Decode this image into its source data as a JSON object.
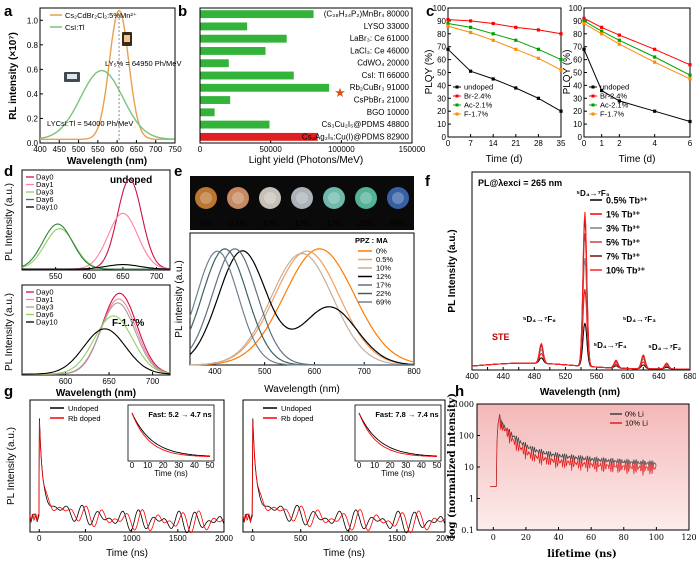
{
  "panel_labels": [
    "a",
    "b",
    "c",
    "d",
    "e",
    "f",
    "g",
    "h"
  ],
  "chart_data": [
    {
      "id": "a",
      "type": "line",
      "xlabel": "Wavelength (nm)",
      "ylabel": "RL intensity (×10⁷)",
      "xlim": [
        400,
        750
      ],
      "ylim": [
        0,
        1.1
      ],
      "xticks": [
        "400",
        "450",
        "500",
        "550",
        "600",
        "650",
        "700",
        "750"
      ],
      "yticks": [
        "0.0",
        "0.2",
        "0.4",
        "0.6",
        "0.8",
        "1.0"
      ],
      "series": [
        {
          "name": "Cs₂CdBr₂Cl₂:5%Mn²⁺",
          "color": "#e8a050",
          "peak": 605,
          "width": 25,
          "amp": 1.05
        },
        {
          "name": "CsI:Tl",
          "color": "#79c47b",
          "peak": 560,
          "width": 55,
          "amp": 0.56
        }
      ],
      "annotations": [
        "LY₅% = 64950 Ph/MeV",
        "LYCsI:Tl = 54000 Ph/MeV"
      ]
    },
    {
      "id": "b",
      "type": "bar",
      "orientation": "horizontal",
      "xlabel": "Light yield (Photons/MeV)",
      "xlim": [
        0,
        150000
      ],
      "xticks": [
        "0",
        "50000",
        "100000",
        "150000"
      ],
      "categories": [
        "(C₃₈H₃₄P₂)MnBr₄ 80000",
        "LYSO 33000",
        "LaBr₃: Ce 61000",
        "LaCl₃: Ce 46000",
        "CdWO₄ 20000",
        "CsI: Tl 66000",
        "Rb₂CuBr₃ 91000",
        "CsPbBr₃ 21000",
        "BGO 10000",
        "Cs₃Cu₂I₅@PDMS 48800",
        "Cs₃Ag₂I₅:Cu(I)@PDMS 82900"
      ],
      "values": [
        80000,
        33000,
        61000,
        46000,
        20000,
        66000,
        91000,
        21000,
        10000,
        48800,
        82900
      ],
      "colors": [
        "#33b33a",
        "#33b33a",
        "#33b33a",
        "#33b33a",
        "#33b33a",
        "#33b33a",
        "#33b33a",
        "#33b33a",
        "#33b33a",
        "#33b33a",
        "#e02020"
      ]
    },
    {
      "id": "c1",
      "type": "line",
      "xlabel": "Time (d)",
      "ylabel": "PLQY (%)",
      "x": [
        0,
        7,
        14,
        21,
        28,
        35
      ],
      "xlim": [
        0,
        35
      ],
      "ylim": [
        0,
        100
      ],
      "xticks": [
        "0",
        "7",
        "14",
        "21",
        "28",
        "35"
      ],
      "yticks": [
        "0",
        "10",
        "20",
        "30",
        "40",
        "50",
        "60",
        "70",
        "80",
        "90",
        "100"
      ],
      "series": [
        {
          "name": "undoped",
          "color": "#000000",
          "values": [
            68,
            51,
            45,
            38,
            30,
            20
          ]
        },
        {
          "name": "Br-2.4%",
          "color": "#ff0000",
          "values": [
            91,
            90,
            88,
            85,
            83,
            80
          ]
        },
        {
          "name": "Ac-2.1%",
          "color": "#00a000",
          "values": [
            88,
            85,
            80,
            75,
            68,
            60
          ]
        },
        {
          "name": "F-1.7%",
          "color": "#ff8c00",
          "values": [
            86,
            81,
            75,
            68,
            61,
            52
          ]
        }
      ]
    },
    {
      "id": "c2",
      "type": "line",
      "xlabel": "Time (d)",
      "ylabel": "PLQY (%)",
      "x": [
        0,
        1,
        2,
        4,
        6
      ],
      "xlim": [
        0,
        6
      ],
      "ylim": [
        0,
        100
      ],
      "xticks": [
        "0",
        "1",
        "2",
        "4",
        "6"
      ],
      "yticks": [
        "0",
        "10",
        "20",
        "30",
        "40",
        "50",
        "60",
        "70",
        "80",
        "90",
        "100"
      ],
      "series": [
        {
          "name": "undoped",
          "color": "#000000",
          "values": [
            68,
            36,
            28,
            20,
            12
          ]
        },
        {
          "name": "Br-2.4%",
          "color": "#ff0000",
          "values": [
            92,
            85,
            79,
            68,
            56
          ]
        },
        {
          "name": "Ac-2.1%",
          "color": "#00a000",
          "values": [
            90,
            82,
            75,
            62,
            48
          ]
        },
        {
          "name": "F-1.7%",
          "color": "#ff8c00",
          "values": [
            88,
            80,
            72,
            58,
            45
          ]
        }
      ]
    },
    {
      "id": "d1",
      "type": "line",
      "title": "undoped",
      "xlabel": "",
      "ylabel": "PL Intensity (a.u.)",
      "xlim": [
        500,
        720
      ],
      "xticks": [
        "550",
        "600",
        "650",
        "700"
      ],
      "series": [
        {
          "name": "Day0",
          "color": "#d01040",
          "peak": 660,
          "width": 18,
          "amp": 1.0
        },
        {
          "name": "Day1",
          "color": "#ff80a0",
          "peak": 650,
          "width": 22,
          "amp": 0.62
        },
        {
          "name": "Day3",
          "color": "#90d060",
          "peak": 556,
          "width": 22,
          "amp": 0.45
        },
        {
          "name": "Day6",
          "color": "#308040",
          "peak": 553,
          "width": 22,
          "amp": 0.5
        },
        {
          "name": "Day10",
          "color": "#000000",
          "peak": 650,
          "width": 25,
          "amp": 0.05
        }
      ]
    },
    {
      "id": "d2",
      "type": "line",
      "title": "F-1.7%",
      "xlabel": "Wavelength (nm)",
      "ylabel": "PL Intensity (a.u.)",
      "xlim": [
        550,
        720
      ],
      "xticks": [
        "600",
        "650",
        "700"
      ],
      "series": [
        {
          "name": "Day0",
          "color": "#d01040",
          "peak": 662,
          "width": 20,
          "amp": 1.0
        },
        {
          "name": "Day1",
          "color": "#ff80a0",
          "peak": 661,
          "width": 20,
          "amp": 0.93
        },
        {
          "name": "Day3",
          "color": "#a0a0a0",
          "peak": 660,
          "width": 20,
          "amp": 0.88
        },
        {
          "name": "Day6",
          "color": "#90d060",
          "peak": 655,
          "width": 22,
          "amp": 0.72
        },
        {
          "name": "Day10",
          "color": "#000000",
          "peak": 645,
          "width": 24,
          "amp": 0.56
        }
      ]
    },
    {
      "id": "e",
      "type": "line",
      "xlabel": "Wavelength (nm)",
      "ylabel": "PL intensity (a.u.)",
      "xlim": [
        350,
        800
      ],
      "xticks": [
        "400",
        "500",
        "600",
        "700",
        "800"
      ],
      "photo_labels": [
        "0%",
        "0.5%",
        "10%",
        "12%",
        "17%",
        "22%",
        "69%"
      ],
      "legend_title": "PPZ : MA",
      "series": [
        {
          "name": "0%",
          "color": "#ff7a00",
          "peak": 610,
          "width": 70,
          "amp": 1.0
        },
        {
          "name": "0.5%",
          "color": "#f0a060",
          "peak": 585,
          "width": 65,
          "amp": 0.98
        },
        {
          "name": "10%",
          "color": "#c0b0a0",
          "peak": 575,
          "width": 62,
          "amp": 0.96
        },
        {
          "name": "12%",
          "color": "#000000",
          "peak": 455,
          "width": 48,
          "amp": 0.98
        },
        {
          "name": "17%",
          "color": "#607080",
          "peak": 440,
          "width": 45,
          "amp": 1.0
        },
        {
          "name": "22%",
          "color": "#406060",
          "peak": 420,
          "width": 45,
          "amp": 1.0
        },
        {
          "name": "69%",
          "color": "#708090",
          "peak": 405,
          "width": 42,
          "amp": 0.98
        }
      ]
    },
    {
      "id": "f",
      "type": "line",
      "title": "PL@λexci = 265 nm",
      "xlabel": "Wavelength (nm)",
      "ylabel": "PL Intensity (a.u.)",
      "xlim": [
        400,
        680
      ],
      "xticks": [
        "400",
        "420",
        "440",
        "460",
        "480",
        "500",
        "520",
        "540",
        "560",
        "580",
        "600",
        "620",
        "640",
        "660",
        "680"
      ],
      "peaks_nm": [
        489,
        545,
        585,
        620,
        650
      ],
      "peak_labels": [
        "⁵D₄→⁷F₆",
        "⁵D₄→⁷F₅",
        "⁵D₄→⁷F₄",
        "⁵D₄→⁷F₃",
        "⁵D₄→⁷F₂"
      ],
      "annotations": [
        "STE"
      ],
      "series": [
        {
          "name": "0.5% Tb³⁺",
          "color": "#000000",
          "amp": 0.28
        },
        {
          "name": "1% Tb³⁺",
          "color": "#ff0000",
          "amp": 0.5
        },
        {
          "name": "3% Tb³⁺",
          "color": "#808080",
          "amp": 0.7
        },
        {
          "name": "5% Tb³⁺",
          "color": "#d04040",
          "amp": 0.86
        },
        {
          "name": "7% Tb³⁺",
          "color": "#7a1010",
          "amp": 0.95
        },
        {
          "name": "10% Tb³⁺",
          "color": "#ff2020",
          "amp": 1.0
        }
      ]
    },
    {
      "id": "g1",
      "type": "line",
      "xlabel": "Time (ns)",
      "ylabel": "PL Intensity (a.u.)",
      "xlim": [
        -100,
        2000
      ],
      "xticks": [
        "0",
        "500",
        "1000",
        "1500",
        "2000"
      ],
      "series": [
        {
          "name": "Undoped",
          "color": "#000000"
        },
        {
          "name": "Rb doped",
          "color": "#ff0000"
        }
      ],
      "inset": {
        "text": "Fast: 5.2 → 4.7 ns",
        "xlabel": "Time (ns)",
        "xticks": [
          "0",
          "10",
          "20",
          "30",
          "40",
          "50"
        ]
      }
    },
    {
      "id": "g2",
      "type": "line",
      "xlabel": "Time (ns)",
      "ylabel": "",
      "xlim": [
        -100,
        2000
      ],
      "xticks": [
        "0",
        "500",
        "1000",
        "1500",
        "2000"
      ],
      "series": [
        {
          "name": "Undoped",
          "color": "#000000"
        },
        {
          "name": "Rb doped",
          "color": "#ff0000"
        }
      ],
      "inset": {
        "text": "Fast: 7.8 → 7.4 ns",
        "xlabel": "Time (ns)",
        "xticks": [
          "0",
          "10",
          "20",
          "30",
          "40",
          "50"
        ]
      }
    },
    {
      "id": "h",
      "type": "line",
      "xlabel": "lifetime (ns)",
      "ylabel": "log (normalized intensity)",
      "xlim": [
        -10,
        120
      ],
      "ylim_log": [
        0.1,
        1000
      ],
      "xticks": [
        "0",
        "20",
        "40",
        "60",
        "80",
        "100",
        "120"
      ],
      "yticks": [
        "0.1",
        "1",
        "10",
        "100",
        "1000"
      ],
      "series": [
        {
          "name": "0% Li",
          "color": "#404040"
        },
        {
          "name": "10% Li",
          "color": "#e02020"
        }
      ]
    }
  ]
}
